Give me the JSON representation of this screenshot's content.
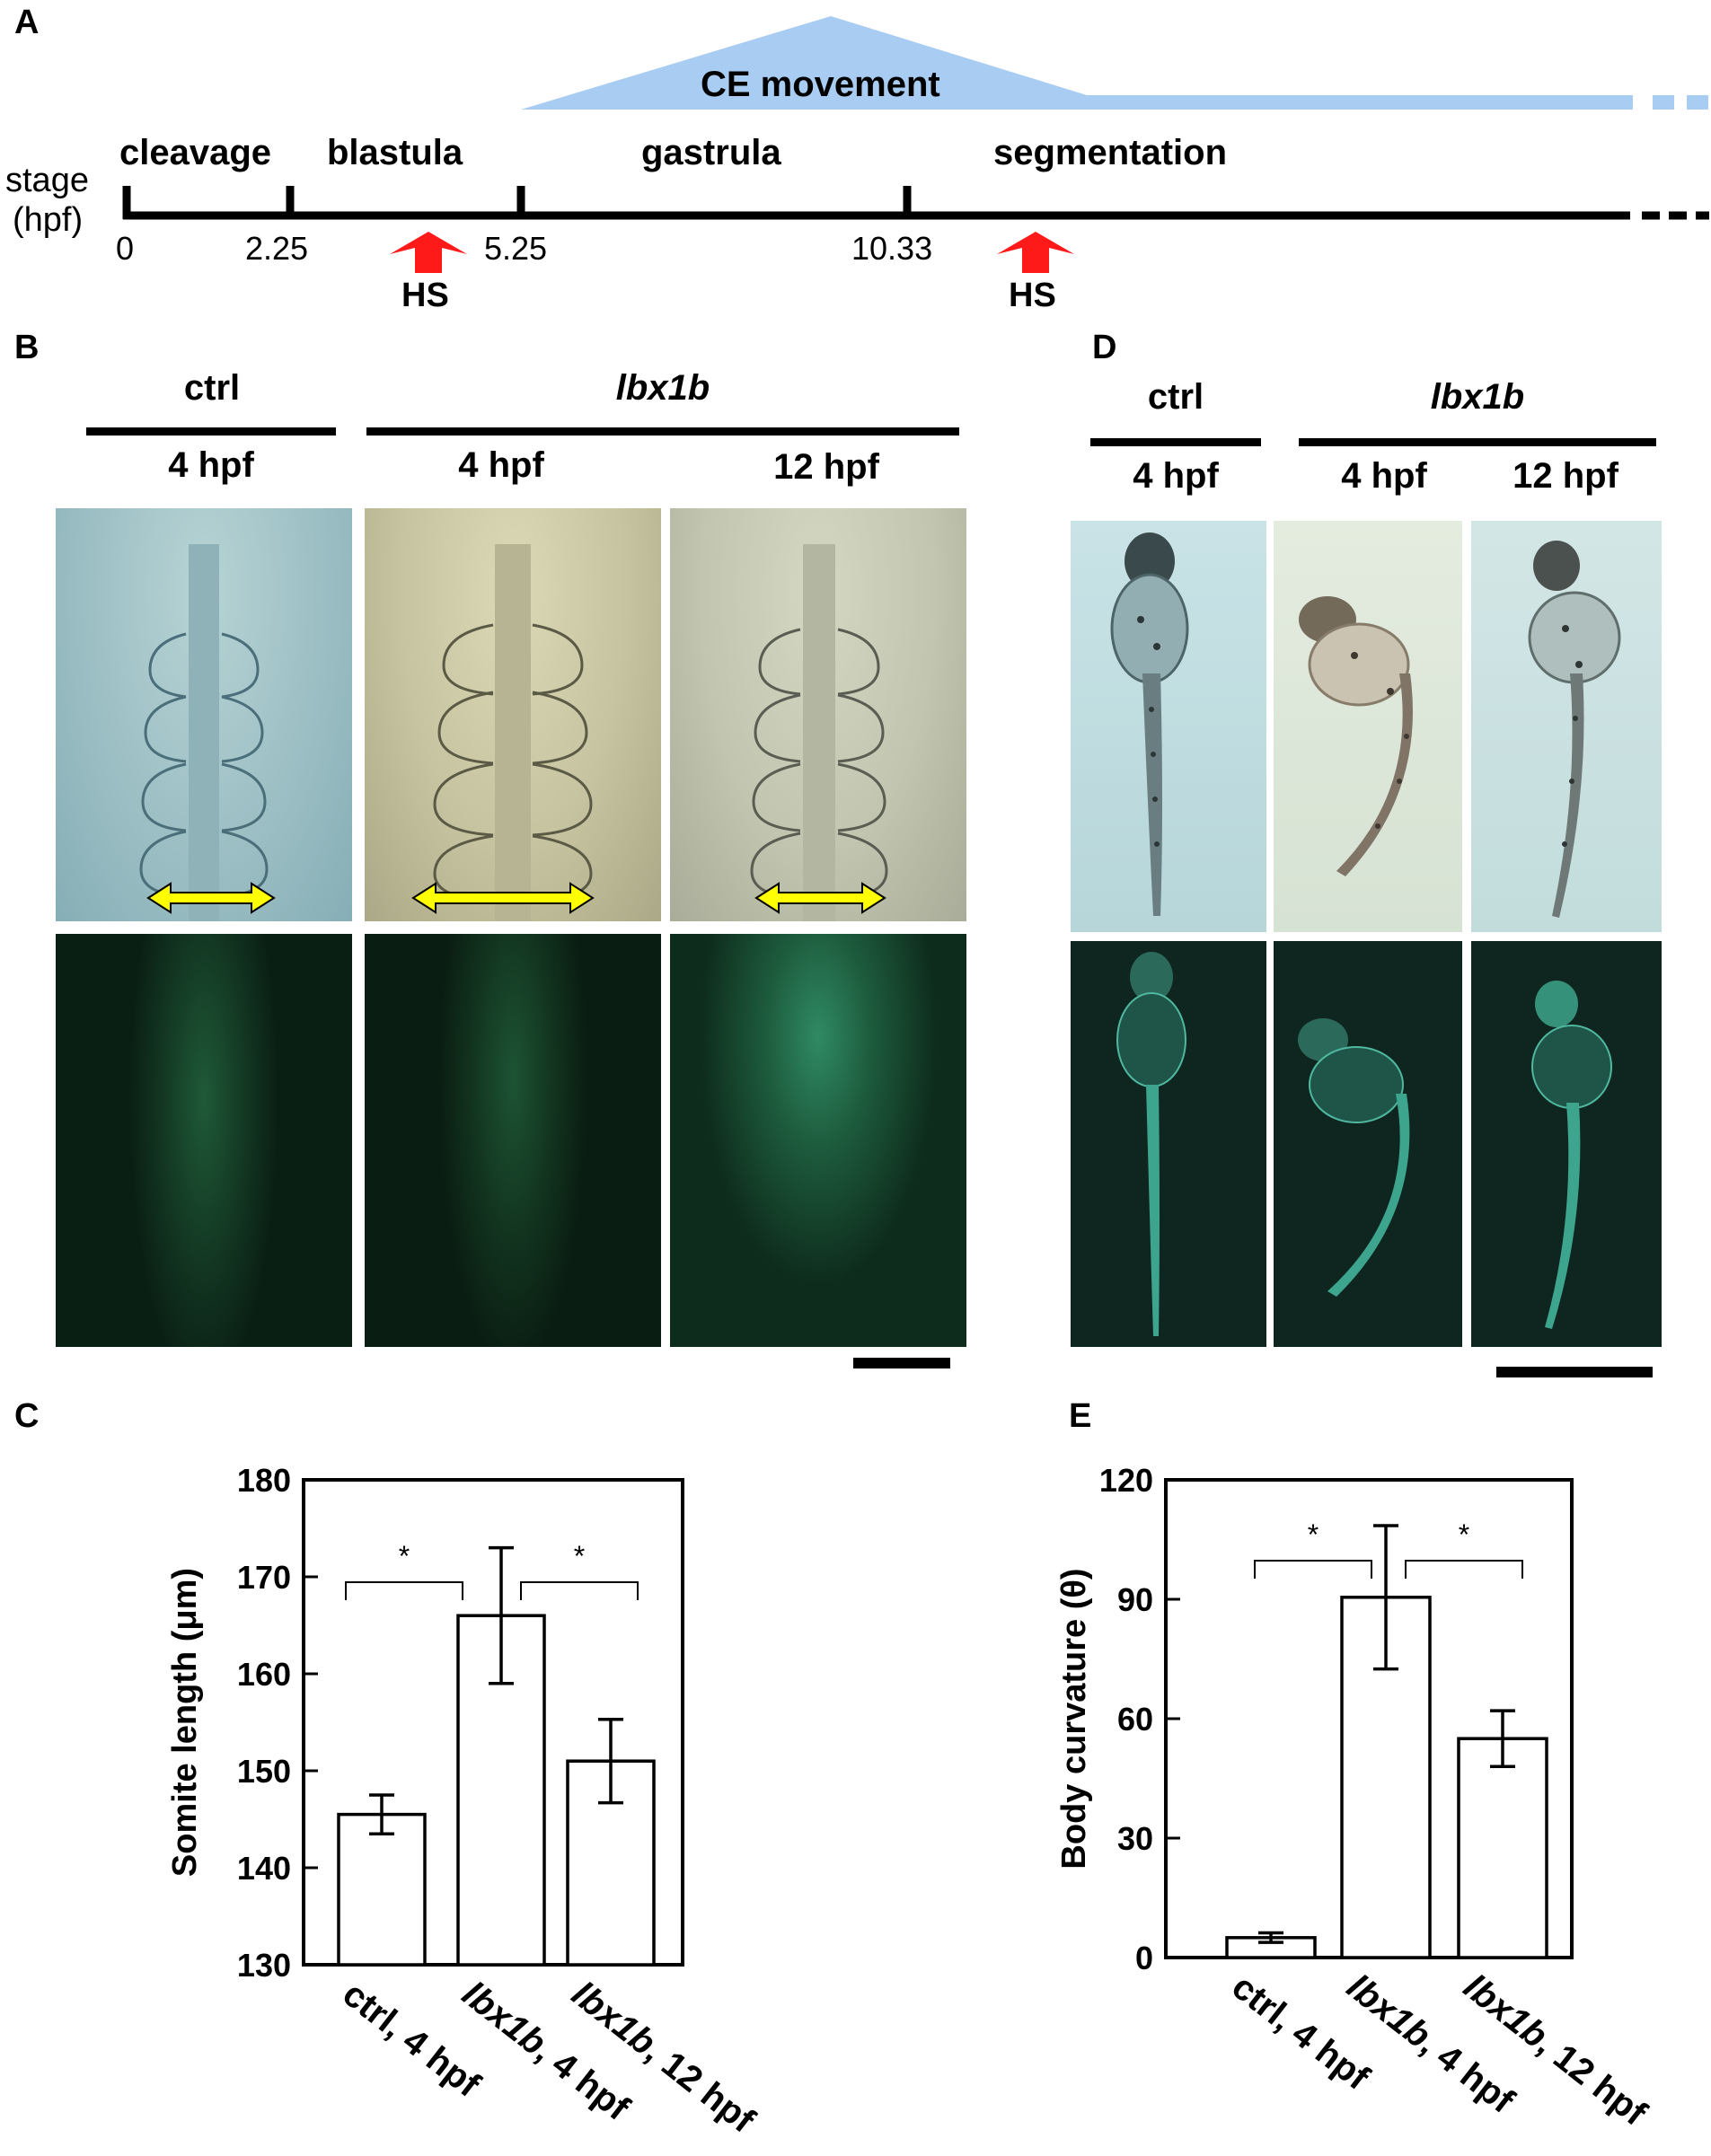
{
  "panels": {
    "a": "A",
    "b": "B",
    "c": "C",
    "d": "D",
    "e": "E"
  },
  "timeline": {
    "ce_label": "CE movement",
    "stage_label_1": "stage",
    "stage_label_2": "(hpf)",
    "stages": [
      "cleavage",
      "blastula",
      "gastrula",
      "segmentation"
    ],
    "ticks": [
      "0",
      "2.25",
      "5.25",
      "10.33"
    ],
    "hs_label": "HS"
  },
  "panel_b": {
    "ctrl": "ctrl",
    "gene": "lbx1b",
    "times": [
      "4 hpf",
      "4 hpf",
      "12 hpf"
    ]
  },
  "panel_d": {
    "ctrl": "ctrl",
    "gene": "lbx1b",
    "times": [
      "4 hpf",
      "4 hpf",
      "12 hpf"
    ]
  },
  "colors": {
    "ce_blue": "#a8ccf2",
    "hs_red": "#ff1a1a",
    "arrow_yellow": "#ffff00",
    "brightfield": "#c8dcd8",
    "fluorescent": "#0f2a18"
  },
  "chart_data": [
    {
      "type": "bar",
      "panel": "C",
      "categories": [
        "ctrl, 4 hpf",
        "lbx1b, 4 hpf",
        "lbx1b, 12 hpf"
      ],
      "values": [
        145.5,
        166,
        151
      ],
      "errors": [
        2,
        7,
        4.3
      ],
      "ylabel": "Somite length (μm)",
      "ylim": [
        130,
        180
      ],
      "yticks": [
        "130",
        "140",
        "150",
        "160",
        "170",
        "180"
      ],
      "significance": [
        "*",
        "*"
      ]
    },
    {
      "type": "bar",
      "panel": "E",
      "categories": [
        "ctrl, 4 hpf",
        "lbx1b, 4 hpf",
        "lbx1b, 12 hpf"
      ],
      "values": [
        5,
        90.5,
        55
      ],
      "errors": [
        1.2,
        18,
        7
      ],
      "ylabel": "Body curvature (θ)",
      "ylim": [
        0,
        120
      ],
      "yticks": [
        "0",
        "30",
        "60",
        "90",
        "120"
      ],
      "significance": [
        "*",
        "*"
      ]
    }
  ]
}
